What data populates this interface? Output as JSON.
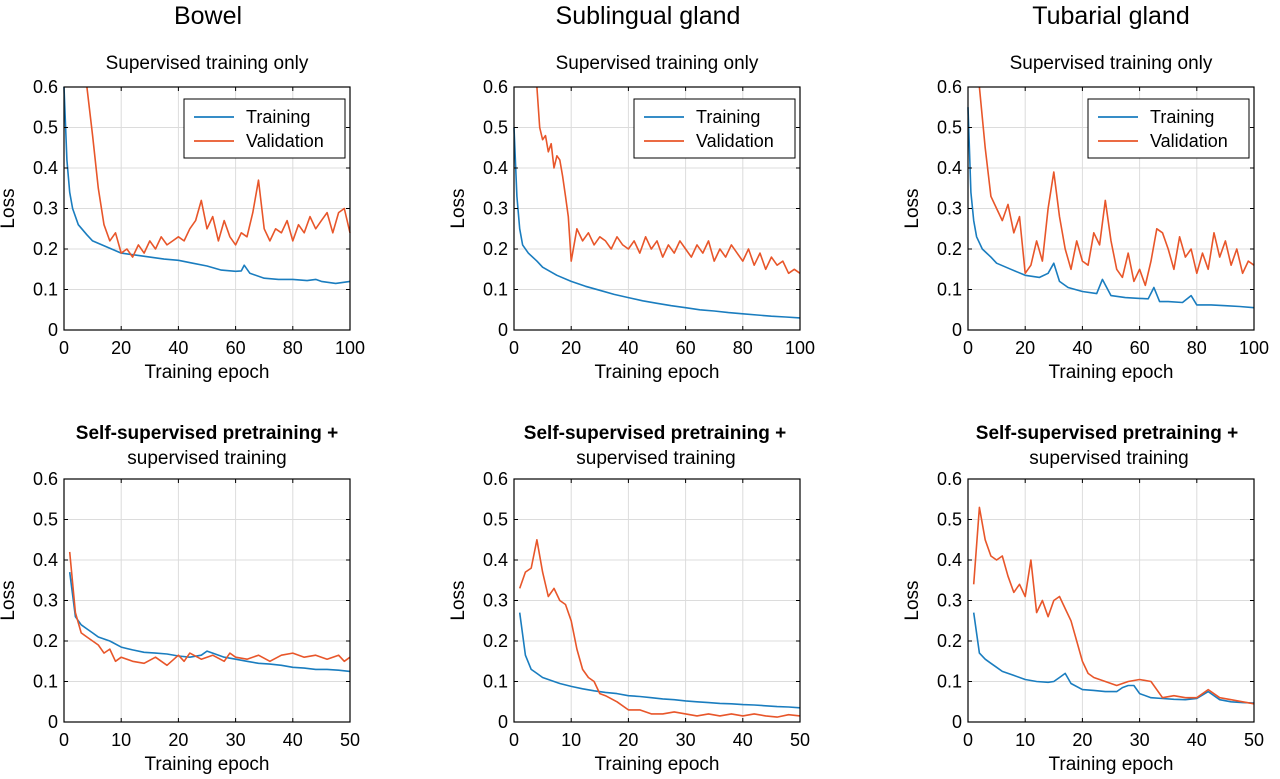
{
  "column_titles": [
    "Bowel",
    "Sublingual gland",
    "Tubarial gland"
  ],
  "row_titles": {
    "top": [
      "Supervised training only"
    ],
    "bottom": [
      "Self-supervised pretraining +",
      "supervised training"
    ]
  },
  "colors": {
    "training": "#1a7dbf",
    "validation": "#e8562a"
  },
  "chart_data": [
    {
      "id": "bowel-supervised",
      "type": "line",
      "title": "Supervised training only",
      "xlabel": "Training epoch",
      "ylabel": "Loss",
      "xlim": [
        0,
        100
      ],
      "ylim": [
        0,
        0.6
      ],
      "xticks": [
        "0",
        "20",
        "40",
        "60",
        "80",
        "100"
      ],
      "yticks": [
        "0",
        "0.1",
        "0.2",
        "0.3",
        "0.4",
        "0.5",
        "0.6"
      ],
      "grid": true,
      "legend": "top-right",
      "series": [
        {
          "name": "Training",
          "color": "#1a7dbf",
          "x": [
            0,
            1,
            2,
            3,
            5,
            8,
            10,
            15,
            20,
            25,
            30,
            35,
            40,
            45,
            50,
            55,
            60,
            62,
            63,
            65,
            70,
            75,
            80,
            85,
            88,
            90,
            95,
            100
          ],
          "y": [
            0.6,
            0.42,
            0.34,
            0.3,
            0.26,
            0.235,
            0.22,
            0.205,
            0.19,
            0.185,
            0.18,
            0.175,
            0.172,
            0.165,
            0.158,
            0.148,
            0.145,
            0.146,
            0.16,
            0.14,
            0.128,
            0.125,
            0.125,
            0.122,
            0.125,
            0.12,
            0.115,
            0.12
          ]
        },
        {
          "name": "Validation",
          "color": "#e8562a",
          "x": [
            8,
            10,
            12,
            14,
            16,
            18,
            20,
            22,
            24,
            26,
            28,
            30,
            32,
            34,
            36,
            38,
            40,
            42,
            44,
            46,
            48,
            50,
            52,
            54,
            56,
            58,
            60,
            62,
            64,
            66,
            68,
            70,
            72,
            74,
            76,
            78,
            80,
            82,
            84,
            86,
            88,
            90,
            92,
            94,
            96,
            98,
            100
          ],
          "y": [
            0.6,
            0.48,
            0.35,
            0.26,
            0.22,
            0.24,
            0.19,
            0.2,
            0.18,
            0.21,
            0.19,
            0.22,
            0.2,
            0.23,
            0.21,
            0.22,
            0.23,
            0.22,
            0.25,
            0.27,
            0.32,
            0.25,
            0.28,
            0.22,
            0.27,
            0.23,
            0.21,
            0.24,
            0.23,
            0.29,
            0.37,
            0.25,
            0.22,
            0.25,
            0.24,
            0.27,
            0.22,
            0.26,
            0.24,
            0.28,
            0.25,
            0.27,
            0.29,
            0.24,
            0.29,
            0.3,
            0.24
          ]
        }
      ]
    },
    {
      "id": "sublingual-supervised",
      "type": "line",
      "title": "Supervised training only",
      "xlabel": "Training epoch",
      "ylabel": "Loss",
      "xlim": [
        0,
        100
      ],
      "ylim": [
        0,
        0.6
      ],
      "xticks": [
        "0",
        "20",
        "40",
        "60",
        "80",
        "100"
      ],
      "yticks": [
        "0",
        "0.1",
        "0.2",
        "0.3",
        "0.4",
        "0.5",
        "0.6"
      ],
      "grid": true,
      "legend": "top-right",
      "series": [
        {
          "name": "Training",
          "color": "#1a7dbf",
          "x": [
            0,
            1,
            2,
            3,
            5,
            8,
            10,
            15,
            20,
            25,
            30,
            35,
            40,
            45,
            50,
            55,
            60,
            65,
            70,
            75,
            80,
            85,
            90,
            95,
            100
          ],
          "y": [
            0.5,
            0.33,
            0.25,
            0.21,
            0.19,
            0.17,
            0.155,
            0.135,
            0.12,
            0.108,
            0.098,
            0.088,
            0.08,
            0.072,
            0.066,
            0.06,
            0.055,
            0.05,
            0.047,
            0.043,
            0.04,
            0.037,
            0.034,
            0.032,
            0.03
          ]
        },
        {
          "name": "Validation",
          "color": "#e8562a",
          "x": [
            8,
            9,
            10,
            11,
            12,
            13,
            14,
            15,
            16,
            17,
            18,
            19,
            20,
            22,
            24,
            26,
            28,
            30,
            32,
            34,
            36,
            38,
            40,
            42,
            44,
            46,
            48,
            50,
            52,
            54,
            56,
            58,
            60,
            62,
            64,
            66,
            68,
            70,
            72,
            74,
            76,
            78,
            80,
            82,
            84,
            86,
            88,
            90,
            92,
            94,
            96,
            98,
            100
          ],
          "y": [
            0.6,
            0.5,
            0.47,
            0.48,
            0.44,
            0.46,
            0.4,
            0.43,
            0.42,
            0.38,
            0.33,
            0.28,
            0.17,
            0.25,
            0.22,
            0.24,
            0.21,
            0.23,
            0.22,
            0.2,
            0.23,
            0.21,
            0.2,
            0.22,
            0.19,
            0.23,
            0.2,
            0.22,
            0.18,
            0.21,
            0.19,
            0.22,
            0.2,
            0.18,
            0.21,
            0.19,
            0.22,
            0.17,
            0.2,
            0.18,
            0.21,
            0.19,
            0.17,
            0.2,
            0.16,
            0.19,
            0.15,
            0.18,
            0.16,
            0.17,
            0.14,
            0.15,
            0.14
          ]
        }
      ]
    },
    {
      "id": "tubarial-supervised",
      "type": "line",
      "title": "Supervised training only",
      "xlabel": "Training epoch",
      "ylabel": "Loss",
      "xlim": [
        0,
        100
      ],
      "ylim": [
        0,
        0.6
      ],
      "xticks": [
        "0",
        "20",
        "40",
        "60",
        "80",
        "100"
      ],
      "yticks": [
        "0",
        "0.1",
        "0.2",
        "0.3",
        "0.4",
        "0.5",
        "0.6"
      ],
      "grid": true,
      "legend": "top-right",
      "series": [
        {
          "name": "Training",
          "color": "#1a7dbf",
          "x": [
            0,
            1,
            2,
            3,
            5,
            8,
            10,
            15,
            20,
            25,
            28,
            30,
            32,
            35,
            40,
            45,
            47,
            50,
            55,
            60,
            63,
            65,
            67,
            70,
            75,
            78,
            80,
            85,
            90,
            95,
            100
          ],
          "y": [
            0.55,
            0.34,
            0.27,
            0.23,
            0.2,
            0.18,
            0.165,
            0.15,
            0.135,
            0.13,
            0.14,
            0.165,
            0.12,
            0.105,
            0.095,
            0.09,
            0.125,
            0.085,
            0.08,
            0.078,
            0.077,
            0.105,
            0.07,
            0.07,
            0.068,
            0.085,
            0.062,
            0.062,
            0.06,
            0.058,
            0.055
          ]
        },
        {
          "name": "Validation",
          "color": "#e8562a",
          "x": [
            4,
            6,
            8,
            10,
            12,
            14,
            16,
            18,
            20,
            22,
            24,
            26,
            28,
            30,
            32,
            34,
            36,
            38,
            40,
            42,
            44,
            46,
            48,
            50,
            52,
            54,
            56,
            58,
            60,
            62,
            64,
            66,
            68,
            70,
            72,
            74,
            76,
            78,
            80,
            82,
            84,
            86,
            88,
            90,
            92,
            94,
            96,
            98,
            100
          ],
          "y": [
            0.6,
            0.45,
            0.33,
            0.3,
            0.27,
            0.31,
            0.24,
            0.28,
            0.14,
            0.16,
            0.22,
            0.17,
            0.3,
            0.39,
            0.28,
            0.2,
            0.15,
            0.22,
            0.17,
            0.16,
            0.24,
            0.21,
            0.32,
            0.22,
            0.15,
            0.13,
            0.19,
            0.12,
            0.15,
            0.11,
            0.17,
            0.25,
            0.24,
            0.2,
            0.15,
            0.23,
            0.18,
            0.2,
            0.14,
            0.19,
            0.15,
            0.24,
            0.18,
            0.22,
            0.16,
            0.2,
            0.14,
            0.17,
            0.16
          ]
        }
      ]
    },
    {
      "id": "bowel-pretrained",
      "type": "line",
      "title": "Self-supervised pretraining + supervised training",
      "xlabel": "Training epoch",
      "ylabel": "Loss",
      "xlim": [
        0,
        50
      ],
      "ylim": [
        0,
        0.6
      ],
      "xticks": [
        "0",
        "10",
        "20",
        "30",
        "40",
        "50"
      ],
      "yticks": [
        "0",
        "0.1",
        "0.2",
        "0.3",
        "0.4",
        "0.5",
        "0.6"
      ],
      "grid": true,
      "series": [
        {
          "name": "Training",
          "color": "#1a7dbf",
          "x": [
            1,
            2,
            3,
            4,
            5,
            6,
            8,
            10,
            12,
            14,
            16,
            18,
            20,
            22,
            24,
            25,
            26,
            28,
            30,
            32,
            34,
            36,
            38,
            40,
            42,
            44,
            46,
            48,
            50
          ],
          "y": [
            0.37,
            0.26,
            0.24,
            0.23,
            0.22,
            0.21,
            0.2,
            0.185,
            0.178,
            0.172,
            0.17,
            0.168,
            0.163,
            0.16,
            0.165,
            0.175,
            0.17,
            0.16,
            0.155,
            0.15,
            0.145,
            0.143,
            0.14,
            0.135,
            0.133,
            0.13,
            0.13,
            0.128,
            0.125
          ]
        },
        {
          "name": "Validation",
          "color": "#e8562a",
          "x": [
            1,
            2,
            3,
            4,
            5,
            6,
            7,
            8,
            9,
            10,
            12,
            14,
            16,
            18,
            20,
            21,
            22,
            24,
            26,
            28,
            29,
            30,
            32,
            34,
            36,
            38,
            40,
            42,
            44,
            46,
            48,
            49,
            50
          ],
          "y": [
            0.42,
            0.27,
            0.22,
            0.21,
            0.2,
            0.19,
            0.17,
            0.18,
            0.15,
            0.16,
            0.15,
            0.145,
            0.16,
            0.14,
            0.165,
            0.15,
            0.17,
            0.155,
            0.165,
            0.15,
            0.17,
            0.16,
            0.155,
            0.165,
            0.15,
            0.165,
            0.17,
            0.16,
            0.165,
            0.155,
            0.165,
            0.15,
            0.16
          ]
        }
      ]
    },
    {
      "id": "sublingual-pretrained",
      "type": "line",
      "title": "Self-supervised pretraining + supervised training",
      "xlabel": "Training epoch",
      "ylabel": "Loss",
      "xlim": [
        0,
        50
      ],
      "ylim": [
        0,
        0.6
      ],
      "xticks": [
        "0",
        "10",
        "20",
        "30",
        "40",
        "50"
      ],
      "yticks": [
        "0",
        "0.1",
        "0.2",
        "0.3",
        "0.4",
        "0.5",
        "0.6"
      ],
      "grid": true,
      "series": [
        {
          "name": "Training",
          "color": "#1a7dbf",
          "x": [
            1,
            2,
            3,
            4,
            5,
            6,
            8,
            10,
            12,
            14,
            16,
            18,
            20,
            22,
            24,
            26,
            28,
            30,
            32,
            34,
            36,
            38,
            40,
            42,
            44,
            46,
            48,
            50
          ],
          "y": [
            0.27,
            0.165,
            0.13,
            0.12,
            0.11,
            0.105,
            0.095,
            0.088,
            0.082,
            0.077,
            0.073,
            0.07,
            0.065,
            0.063,
            0.06,
            0.057,
            0.055,
            0.052,
            0.05,
            0.048,
            0.046,
            0.045,
            0.043,
            0.042,
            0.04,
            0.038,
            0.037,
            0.035
          ]
        },
        {
          "name": "Validation",
          "color": "#e8562a",
          "x": [
            1,
            2,
            3,
            4,
            5,
            6,
            7,
            8,
            9,
            10,
            11,
            12,
            13,
            14,
            15,
            16,
            18,
            20,
            22,
            24,
            26,
            28,
            30,
            32,
            34,
            36,
            38,
            40,
            42,
            44,
            46,
            48,
            50
          ],
          "y": [
            0.33,
            0.37,
            0.38,
            0.45,
            0.37,
            0.31,
            0.33,
            0.3,
            0.29,
            0.25,
            0.18,
            0.13,
            0.11,
            0.1,
            0.07,
            0.065,
            0.05,
            0.03,
            0.03,
            0.02,
            0.02,
            0.025,
            0.02,
            0.015,
            0.02,
            0.015,
            0.02,
            0.015,
            0.02,
            0.015,
            0.012,
            0.018,
            0.015
          ]
        }
      ]
    },
    {
      "id": "tubarial-pretrained",
      "type": "line",
      "title": "Self-supervised pretraining + supervised training",
      "xlabel": "Training epoch",
      "ylabel": "Loss",
      "xlim": [
        0,
        50
      ],
      "ylim": [
        0,
        0.6
      ],
      "xticks": [
        "0",
        "10",
        "20",
        "30",
        "40",
        "50"
      ],
      "yticks": [
        "0",
        "0.1",
        "0.2",
        "0.3",
        "0.4",
        "0.5",
        "0.6"
      ],
      "grid": true,
      "series": [
        {
          "name": "Training",
          "color": "#1a7dbf",
          "x": [
            1,
            2,
            3,
            4,
            5,
            6,
            8,
            10,
            12,
            14,
            15,
            16,
            17,
            18,
            20,
            22,
            24,
            26,
            27,
            28,
            29,
            30,
            32,
            34,
            36,
            38,
            40,
            42,
            44,
            46,
            48,
            50
          ],
          "y": [
            0.27,
            0.17,
            0.155,
            0.145,
            0.135,
            0.125,
            0.115,
            0.105,
            0.1,
            0.098,
            0.1,
            0.11,
            0.12,
            0.095,
            0.08,
            0.078,
            0.075,
            0.075,
            0.085,
            0.09,
            0.09,
            0.07,
            0.06,
            0.058,
            0.056,
            0.055,
            0.058,
            0.075,
            0.055,
            0.05,
            0.048,
            0.047
          ]
        },
        {
          "name": "Validation",
          "color": "#e8562a",
          "x": [
            1,
            2,
            3,
            4,
            5,
            6,
            7,
            8,
            9,
            10,
            11,
            12,
            13,
            14,
            15,
            16,
            17,
            18,
            19,
            20,
            21,
            22,
            24,
            26,
            28,
            30,
            32,
            34,
            36,
            38,
            40,
            42,
            44,
            46,
            48,
            50
          ],
          "y": [
            0.34,
            0.53,
            0.45,
            0.41,
            0.4,
            0.41,
            0.36,
            0.32,
            0.34,
            0.31,
            0.4,
            0.27,
            0.3,
            0.26,
            0.3,
            0.31,
            0.28,
            0.25,
            0.2,
            0.15,
            0.12,
            0.11,
            0.1,
            0.09,
            0.1,
            0.105,
            0.1,
            0.06,
            0.065,
            0.06,
            0.06,
            0.08,
            0.06,
            0.055,
            0.05,
            0.045
          ]
        }
      ]
    }
  ]
}
